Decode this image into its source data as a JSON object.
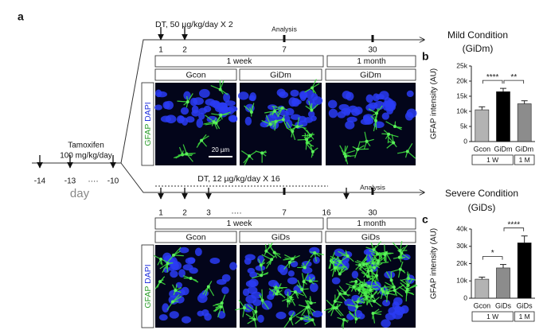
{
  "panel_labels": [
    "a",
    "b",
    "c"
  ],
  "pretreatment": {
    "drug": "Tamoxifen",
    "dose": "100 mg/kg/day",
    "days": [
      "-14",
      "-13",
      "····",
      "-10"
    ],
    "unit": "day"
  },
  "stain_label": {
    "gfap": "GFAP",
    "dapi": "DAPI"
  },
  "mild": {
    "dt_label": "DT, 50 µg/kg/day X 2",
    "analysis": "Analysis",
    "days": [
      "1",
      "2",
      "7",
      "30"
    ],
    "periods": [
      "1 week",
      "1 month"
    ],
    "groups": [
      "Gcon",
      "GiDm",
      "GiDm"
    ],
    "title": "Mild Condition",
    "subtitle": "(GiDm)",
    "scale_bar": "20 µm"
  },
  "severe": {
    "dt_label": "DT, 12 µg/kg/day X 16",
    "analysis": "Analysis",
    "days": [
      "1",
      "2",
      "3",
      "····",
      "7",
      "16",
      "30"
    ],
    "periods": [
      "1 week",
      "1 month"
    ],
    "groups": [
      "Gcon",
      "GiDs",
      "GiDs"
    ],
    "title": "Severe Condition",
    "subtitle": "(GiDs)"
  },
  "chart_data": [
    {
      "type": "bar",
      "y_label": "GFAP intensity (AU)",
      "categories": [
        "Gcon",
        "GiDm",
        "GiDm"
      ],
      "values": [
        10500,
        16500,
        12500
      ],
      "errors": [
        1000,
        1100,
        1000
      ],
      "colors": [
        "#b3b3b3",
        "#000000",
        "#8c8c8c"
      ],
      "ylim": [
        0,
        25000
      ],
      "yticks": [
        0,
        {
          "value": 5000,
          "label": "5k"
        },
        {
          "value": 10000,
          "label": "10k"
        },
        {
          "value": 15000,
          "label": "15k"
        },
        {
          "value": 20000,
          "label": "20k"
        },
        {
          "value": 25000,
          "label": "25k"
        }
      ],
      "significance": [
        "****",
        "**"
      ],
      "group_labels": [
        "1 W",
        "1 M"
      ]
    },
    {
      "type": "bar",
      "y_label": "GFAP intensity (AU)",
      "categories": [
        "Gcon",
        "GiDs",
        "GiDs"
      ],
      "values": [
        11000,
        17500,
        32000
      ],
      "errors": [
        1200,
        2000,
        4000
      ],
      "colors": [
        "#b3b3b3",
        "#8c8c8c",
        "#000000"
      ],
      "ylim": [
        0,
        40000
      ],
      "yticks": [
        0,
        {
          "value": 10000,
          "label": "10k"
        },
        {
          "value": 20000,
          "label": "20k"
        },
        {
          "value": 30000,
          "label": "30k"
        },
        {
          "value": 40000,
          "label": "40k"
        }
      ],
      "significance": [
        "*",
        "****"
      ],
      "group_labels": [
        "1 W",
        "1 M"
      ]
    }
  ]
}
